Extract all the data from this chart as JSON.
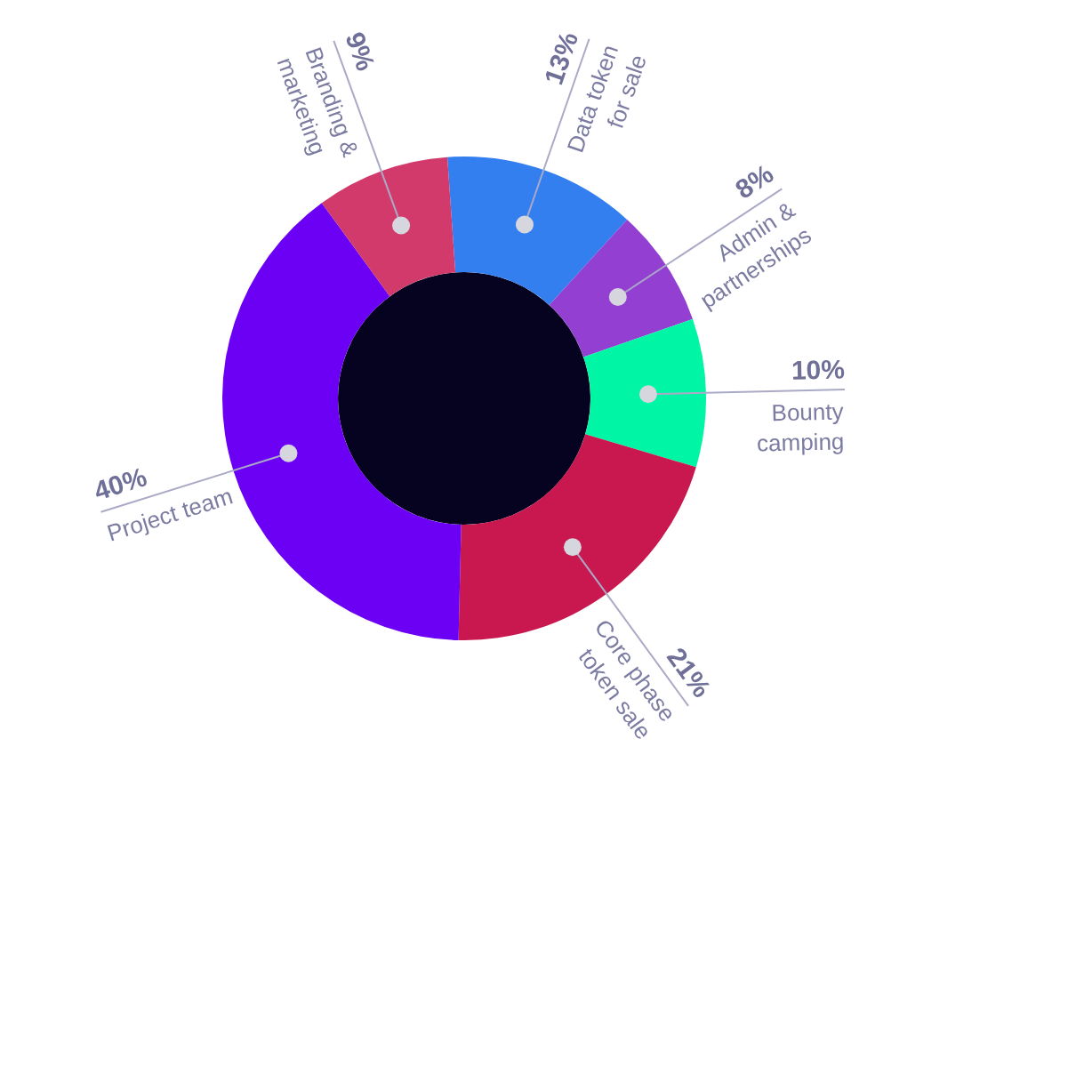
{
  "chart_data": {
    "type": "donut",
    "categories": [
      "Data token for sale",
      "Admin & partnerships",
      "Bounty camping",
      "Core phase token sale",
      "Project team",
      "Branding & marketing"
    ],
    "values": [
      13,
      8,
      10,
      21,
      40,
      9
    ],
    "value_labels": [
      "13%",
      "8%",
      "10%",
      "21%",
      "40%",
      "9%"
    ],
    "colors": [
      "#337ff0",
      "#9340d2",
      "#00f5a5",
      "#c8184f",
      "#6c00f5",
      "#d23a6c"
    ]
  }
}
